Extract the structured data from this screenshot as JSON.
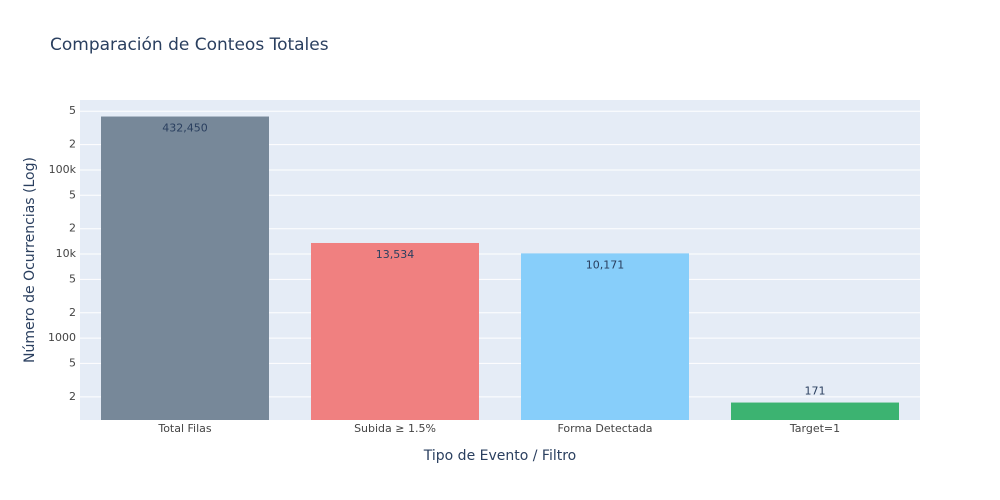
{
  "chart_data": {
    "type": "bar",
    "title": "Comparación de Conteos Totales",
    "x_label": "Tipo de Evento / Filtro",
    "y_label": "Número de Ocurrencias (Log)",
    "categories": [
      "Total Filas",
      "Subida ≥ 1.5%",
      "Forma Detectada",
      "Target=1"
    ],
    "values": [
      432450,
      13534,
      10171,
      171
    ],
    "value_labels": [
      "432,450",
      "13,534",
      "10,171",
      "171"
    ],
    "colors": [
      "#778899",
      "#f08080",
      "#87cefa",
      "#3cb371"
    ],
    "log_y": true,
    "grid": true,
    "ylim": [
      106,
      680000
    ],
    "yticks": [
      {
        "value": 500000,
        "label": "5"
      },
      {
        "value": 200000,
        "label": "2"
      },
      {
        "value": 100000,
        "label": "100k"
      },
      {
        "value": 50000,
        "label": "5"
      },
      {
        "value": 20000,
        "label": "2"
      },
      {
        "value": 10000,
        "label": "10k"
      },
      {
        "value": 5000,
        "label": "5"
      },
      {
        "value": 2000,
        "label": "2"
      },
      1000,
      {
        "value": 500,
        "label": "5"
      },
      {
        "value": 200,
        "label": "2"
      }
    ]
  }
}
